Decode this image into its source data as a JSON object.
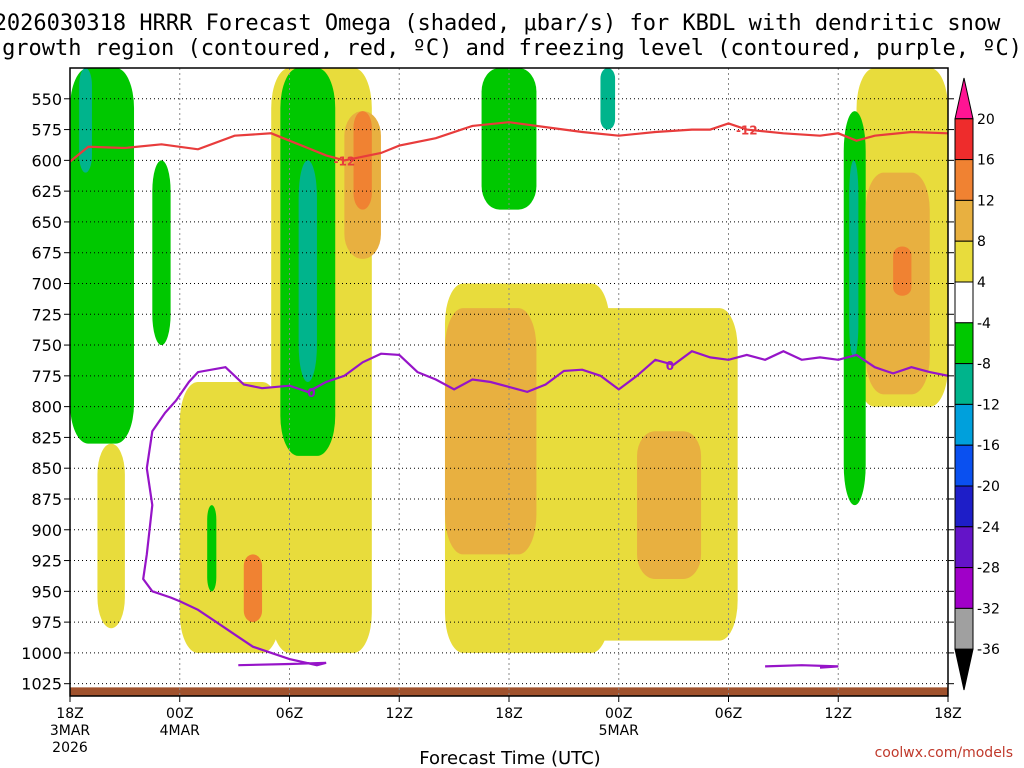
{
  "title": {
    "line1": "2026030318 HRRR Forecast Omega (shaded, μbar/s) for KBDL with dendritic snow",
    "line2": "growth region (contoured, red, ºC) and freezing level (contoured, purple, ºC)"
  },
  "xlabel": "Forecast Time (UTC)",
  "credit": "coolwx.com/models",
  "chart_data": {
    "type": "heatmap",
    "y_axis": {
      "label": "",
      "ticks": [
        550,
        575,
        600,
        625,
        650,
        675,
        700,
        725,
        750,
        775,
        800,
        825,
        850,
        875,
        900,
        925,
        950,
        975,
        1000,
        1025
      ],
      "range": [
        1035,
        525
      ],
      "grid": true
    },
    "x_axis": {
      "label": "Forecast Time (UTC)",
      "range_hours": [
        0,
        48
      ],
      "ticks": [
        {
          "h": 0,
          "label": "18Z",
          "sub1": "3MAR",
          "sub2": "2026"
        },
        {
          "h": 6,
          "label": "00Z",
          "sub1": "4MAR",
          "sub2": ""
        },
        {
          "h": 12,
          "label": "06Z",
          "sub1": "",
          "sub2": ""
        },
        {
          "h": 18,
          "label": "12Z",
          "sub1": "",
          "sub2": ""
        },
        {
          "h": 24,
          "label": "18Z",
          "sub1": "",
          "sub2": ""
        },
        {
          "h": 30,
          "label": "00Z",
          "sub1": "5MAR",
          "sub2": ""
        },
        {
          "h": 36,
          "label": "06Z",
          "sub1": "",
          "sub2": ""
        },
        {
          "h": 42,
          "label": "12Z",
          "sub1": "",
          "sub2": ""
        },
        {
          "h": 48,
          "label": "18Z",
          "sub1": "",
          "sub2": ""
        }
      ]
    },
    "colorbar": {
      "levels": [
        "20",
        "16",
        "12",
        "8",
        "4",
        "-4",
        "-8",
        "-12",
        "-16",
        "-20",
        "-24",
        "-28",
        "-32",
        "-36"
      ],
      "colors": [
        "#ff1493",
        "#ee2c2c",
        "#f08232",
        "#e8b040",
        "#e8dc3c",
        "#ffffff",
        "#00c800",
        "#00b48c",
        "#00a0dc",
        "#0a50f0",
        "#1e1ec8",
        "#6414c8",
        "#a000c8",
        "#a0a0a0",
        "#000000"
      ]
    },
    "shading_regions": [
      {
        "level": 4,
        "color": "#e8dc3c",
        "t0": 6.0,
        "t1": 11.5,
        "p_top": 780,
        "p_bot": 1000
      },
      {
        "level": 4,
        "color": "#e8dc3c",
        "t0": 11.0,
        "t1": 16.5,
        "p_top": 525,
        "p_bot": 1000
      },
      {
        "level": 4,
        "color": "#e8dc3c",
        "t0": 20.5,
        "t1": 29.5,
        "p_top": 700,
        "p_bot": 1000
      },
      {
        "level": 4,
        "color": "#e8dc3c",
        "t0": 28.0,
        "t1": 36.5,
        "p_top": 720,
        "p_bot": 990
      },
      {
        "level": 4,
        "color": "#e8dc3c",
        "t0": 43.0,
        "t1": 48.0,
        "p_top": 525,
        "p_bot": 800
      },
      {
        "level": 4,
        "color": "#e8dc3c",
        "t0": 1.5,
        "t1": 3.0,
        "p_top": 830,
        "p_bot": 980
      },
      {
        "level": 8,
        "color": "#e8b040",
        "t0": 20.5,
        "t1": 25.5,
        "p_top": 720,
        "p_bot": 920
      },
      {
        "level": 8,
        "color": "#e8b040",
        "t0": 31.0,
        "t1": 34.5,
        "p_top": 820,
        "p_bot": 940
      },
      {
        "level": 8,
        "color": "#e8b040",
        "t0": 43.5,
        "t1": 47.0,
        "p_top": 610,
        "p_bot": 790
      },
      {
        "level": 8,
        "color": "#e8b040",
        "t0": 15.0,
        "t1": 17.0,
        "p_top": 560,
        "p_bot": 680
      },
      {
        "level": 12,
        "color": "#f08232",
        "t0": 15.5,
        "t1": 16.5,
        "p_top": 560,
        "p_bot": 640
      },
      {
        "level": 12,
        "color": "#f08232",
        "t0": 9.5,
        "t1": 10.5,
        "p_top": 920,
        "p_bot": 975
      },
      {
        "level": 12,
        "color": "#f08232",
        "t0": 45.0,
        "t1": 46.0,
        "p_top": 670,
        "p_bot": 710
      },
      {
        "level": -4,
        "color": "#00c800",
        "t0": 0.0,
        "t1": 3.5,
        "p_top": 525,
        "p_bot": 830
      },
      {
        "level": -4,
        "color": "#00c800",
        "t0": 4.5,
        "t1": 5.5,
        "p_top": 600,
        "p_bot": 750
      },
      {
        "level": -4,
        "color": "#00c800",
        "t0": 11.5,
        "t1": 14.5,
        "p_top": 525,
        "p_bot": 840
      },
      {
        "level": -4,
        "color": "#00c800",
        "t0": 22.5,
        "t1": 25.5,
        "p_top": 525,
        "p_bot": 640
      },
      {
        "level": -4,
        "color": "#00c800",
        "t0": 42.3,
        "t1": 43.5,
        "p_top": 560,
        "p_bot": 880
      },
      {
        "level": -4,
        "color": "#00c800",
        "t0": 7.5,
        "t1": 8.0,
        "p_top": 880,
        "p_bot": 950
      },
      {
        "level": -8,
        "color": "#00b48c",
        "t0": 12.5,
        "t1": 13.5,
        "p_top": 600,
        "p_bot": 780
      },
      {
        "level": -8,
        "color": "#00b48c",
        "t0": 0.5,
        "t1": 1.2,
        "p_top": 525,
        "p_bot": 610
      },
      {
        "level": -8,
        "color": "#00b48c",
        "t0": 29.0,
        "t1": 29.8,
        "p_top": 525,
        "p_bot": 575
      },
      {
        "level": -8,
        "color": "#00b48c",
        "t0": 42.6,
        "t1": 43.1,
        "p_top": 600,
        "p_bot": 760
      }
    ],
    "series": [
      {
        "name": "-12",
        "color": "#e83c3c",
        "labels_at_hours": [
          15.0,
          37.0
        ],
        "points": [
          [
            0,
            601
          ],
          [
            1,
            589
          ],
          [
            3,
            590
          ],
          [
            5,
            587
          ],
          [
            7,
            591
          ],
          [
            9,
            580
          ],
          [
            11,
            578
          ],
          [
            12,
            584
          ],
          [
            13,
            590
          ],
          [
            14,
            596
          ],
          [
            15,
            600
          ],
          [
            16,
            597
          ],
          [
            17,
            594
          ],
          [
            18,
            588
          ],
          [
            20,
            582
          ],
          [
            22,
            572
          ],
          [
            24,
            569
          ],
          [
            26,
            573
          ],
          [
            28,
            577
          ],
          [
            30,
            580
          ],
          [
            32,
            577
          ],
          [
            34,
            575
          ],
          [
            35,
            575
          ],
          [
            36,
            570
          ],
          [
            37,
            575
          ],
          [
            39,
            578
          ],
          [
            41,
            580
          ],
          [
            42,
            578
          ],
          [
            43,
            584
          ],
          [
            44,
            580
          ],
          [
            46,
            577
          ],
          [
            48,
            578
          ]
        ]
      },
      {
        "name": "0",
        "color": "#9614c8",
        "labels_at_hours": [
          13.2,
          32.8
        ],
        "points": [
          [
            9.2,
            1010
          ],
          [
            12,
            1009
          ],
          [
            14,
            1008
          ],
          [
            13.5,
            1010
          ],
          [
            12,
            1005
          ],
          [
            10,
            995
          ],
          [
            9,
            985
          ],
          [
            8,
            975
          ],
          [
            7,
            965
          ],
          [
            6,
            958
          ],
          [
            5.5,
            955
          ],
          [
            4.5,
            950
          ],
          [
            4,
            940
          ],
          [
            4.2,
            920
          ],
          [
            4.5,
            880
          ],
          [
            4.2,
            850
          ],
          [
            4.5,
            820
          ],
          [
            5.2,
            805
          ],
          [
            5.8,
            795
          ],
          [
            6.5,
            780
          ],
          [
            7,
            772
          ],
          [
            8.5,
            768
          ],
          [
            9.5,
            782
          ],
          [
            10.5,
            785
          ],
          [
            12,
            783
          ],
          [
            13,
            788
          ],
          [
            14,
            780
          ],
          [
            15,
            775
          ],
          [
            16,
            764
          ],
          [
            17,
            757
          ],
          [
            18,
            758
          ],
          [
            19,
            772
          ],
          [
            20,
            778
          ],
          [
            21,
            786
          ],
          [
            22,
            778
          ],
          [
            23,
            780
          ],
          [
            24,
            784
          ],
          [
            25,
            788
          ],
          [
            26,
            782
          ],
          [
            27,
            771
          ],
          [
            28,
            770
          ],
          [
            29,
            775
          ],
          [
            30,
            786
          ],
          [
            31,
            775
          ],
          [
            32,
            762
          ],
          [
            33,
            766
          ],
          [
            34,
            755
          ],
          [
            35,
            760
          ],
          [
            36,
            762
          ],
          [
            37,
            758
          ],
          [
            38,
            762
          ],
          [
            39,
            755
          ],
          [
            40,
            762
          ],
          [
            41,
            760
          ],
          [
            42,
            762
          ],
          [
            43,
            758
          ],
          [
            44,
            768
          ],
          [
            45,
            773
          ],
          [
            46,
            768
          ],
          [
            47,
            772
          ],
          [
            48,
            775
          ]
        ]
      },
      {
        "name": "",
        "color": "#9614c8",
        "labels_at_hours": [],
        "points": [
          [
            38,
            1011
          ],
          [
            40,
            1010
          ],
          [
            42,
            1011
          ],
          [
            41,
            1012
          ]
        ]
      }
    ],
    "ground": {
      "color": "#a0522d",
      "p_top_start": 1030,
      "p_top_end": 1028
    }
  }
}
